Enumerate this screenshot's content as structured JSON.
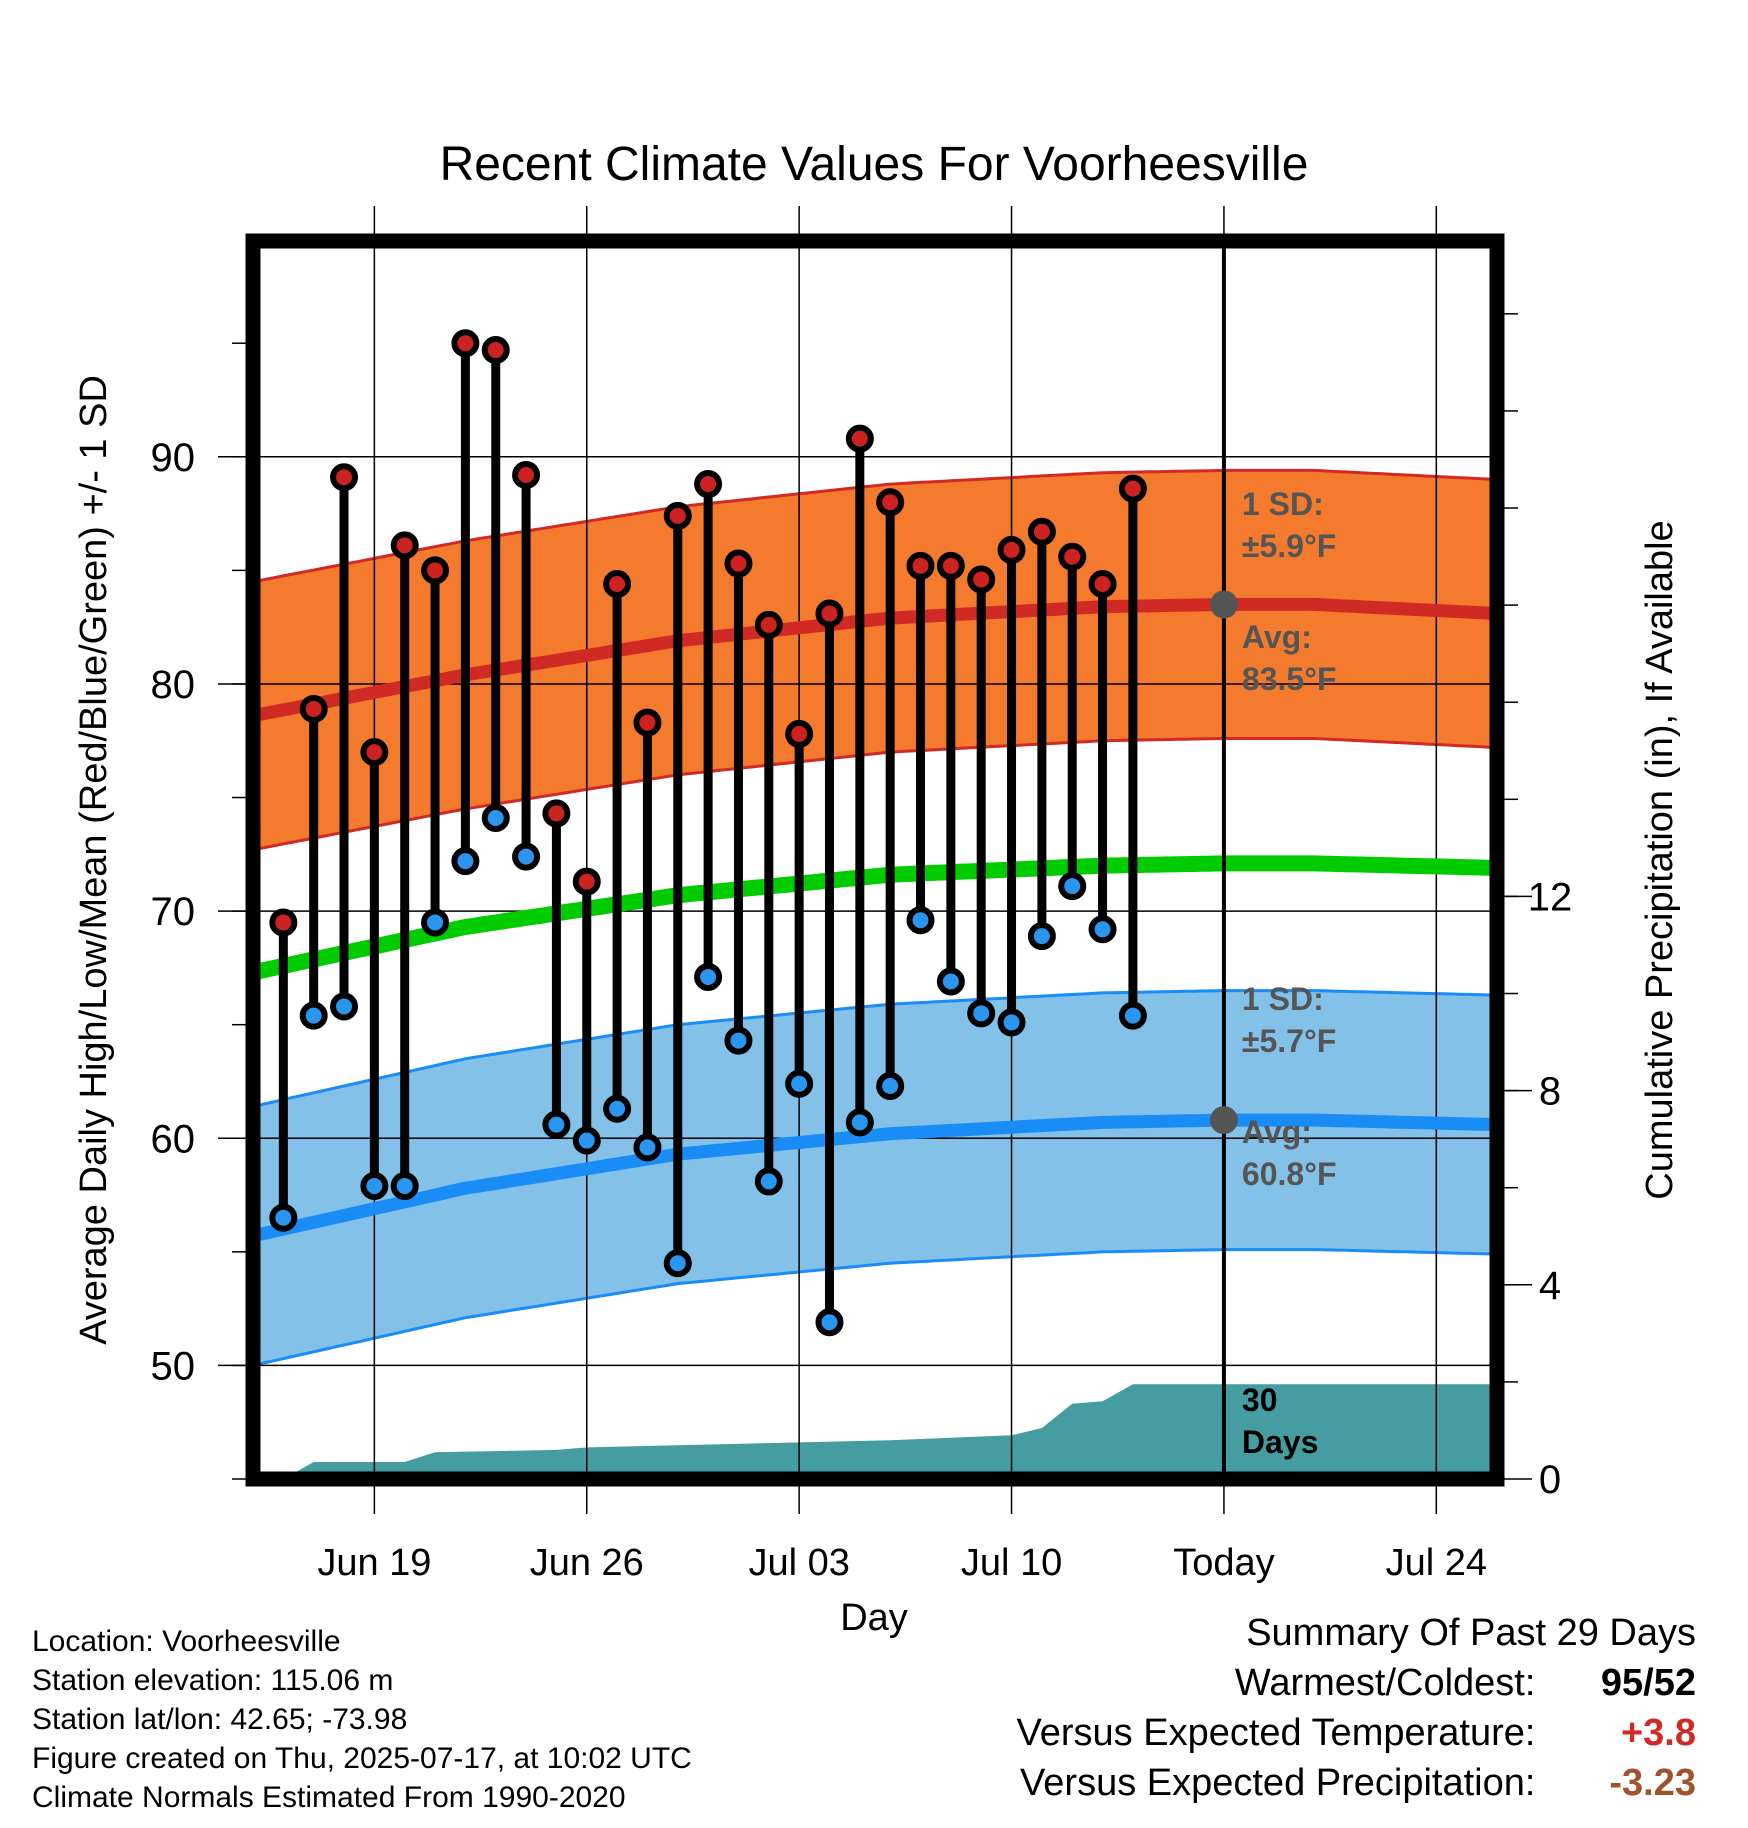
{
  "chart_data": {
    "type": "line",
    "title": "Recent Climate Values For Voorheesville",
    "xlabel": "Day",
    "ylabel_left": "Average Daily High/Low/Mean (Red/Blue/Green) +/- 1 SD",
    "ylabel_right": "Cumulative Precipitation (in), If Available",
    "x_range": [
      "Jun 15",
      "Jul 26"
    ],
    "ylim_left": [
      45,
      99.5
    ],
    "ylim_right": [
      0,
      25.5
    ],
    "y_ticks_left": [
      50,
      60,
      70,
      80,
      90
    ],
    "y_ticks_right": [
      0,
      4,
      8,
      12
    ],
    "x_ticks": [
      {
        "date": "Jun 19",
        "label": "Jun 19"
      },
      {
        "date": "Jun 26",
        "label": "Jun 26"
      },
      {
        "date": "Jul 03",
        "label": "Jul 03"
      },
      {
        "date": "Jul 10",
        "label": "Jul 10"
      },
      {
        "date": "Jul 17",
        "label": "Today"
      },
      {
        "date": "Jul 24",
        "label": "Jul 24"
      }
    ],
    "grid": true,
    "today": "Jul 17",
    "today_label_1": "30",
    "today_label_2": "Days",
    "daily_highs": [
      {
        "date": "Jun 16",
        "value": 69.5
      },
      {
        "date": "Jun 17",
        "value": 78.9
      },
      {
        "date": "Jun 18",
        "value": 89.1
      },
      {
        "date": "Jun 19",
        "value": 77.0
      },
      {
        "date": "Jun 20",
        "value": 86.1
      },
      {
        "date": "Jun 21",
        "value": 85.0
      },
      {
        "date": "Jun 22",
        "value": 95.0
      },
      {
        "date": "Jun 23",
        "value": 94.7
      },
      {
        "date": "Jun 24",
        "value": 89.2
      },
      {
        "date": "Jun 25",
        "value": 74.3
      },
      {
        "date": "Jun 26",
        "value": 71.3
      },
      {
        "date": "Jun 27",
        "value": 84.4
      },
      {
        "date": "Jun 28",
        "value": 78.3
      },
      {
        "date": "Jun 29",
        "value": 87.4
      },
      {
        "date": "Jun 30",
        "value": 88.8
      },
      {
        "date": "Jul 01",
        "value": 85.3
      },
      {
        "date": "Jul 02",
        "value": 82.6
      },
      {
        "date": "Jul 03",
        "value": 77.8
      },
      {
        "date": "Jul 04",
        "value": 83.1
      },
      {
        "date": "Jul 05",
        "value": 90.8
      },
      {
        "date": "Jul 06",
        "value": 88.0
      },
      {
        "date": "Jul 07",
        "value": 85.2
      },
      {
        "date": "Jul 08",
        "value": 85.2
      },
      {
        "date": "Jul 09",
        "value": 84.6
      },
      {
        "date": "Jul 10",
        "value": 85.9
      },
      {
        "date": "Jul 11",
        "value": 86.7
      },
      {
        "date": "Jul 12",
        "value": 85.6
      },
      {
        "date": "Jul 13",
        "value": 84.4
      },
      {
        "date": "Jul 14",
        "value": 88.6
      }
    ],
    "daily_lows": [
      {
        "date": "Jun 16",
        "value": 56.5
      },
      {
        "date": "Jun 17",
        "value": 65.4
      },
      {
        "date": "Jun 18",
        "value": 65.8
      },
      {
        "date": "Jun 19",
        "value": 57.9
      },
      {
        "date": "Jun 20",
        "value": 57.9
      },
      {
        "date": "Jun 21",
        "value": 69.5
      },
      {
        "date": "Jun 22",
        "value": 72.2
      },
      {
        "date": "Jun 23",
        "value": 74.1
      },
      {
        "date": "Jun 24",
        "value": 72.4
      },
      {
        "date": "Jun 25",
        "value": 60.6
      },
      {
        "date": "Jun 26",
        "value": 59.9
      },
      {
        "date": "Jun 27",
        "value": 61.3
      },
      {
        "date": "Jun 28",
        "value": 59.6
      },
      {
        "date": "Jun 29",
        "value": 54.5
      },
      {
        "date": "Jun 30",
        "value": 67.1
      },
      {
        "date": "Jul 01",
        "value": 64.3
      },
      {
        "date": "Jul 02",
        "value": 58.1
      },
      {
        "date": "Jul 03",
        "value": 62.4
      },
      {
        "date": "Jul 04",
        "value": 51.9
      },
      {
        "date": "Jul 05",
        "value": 60.7
      },
      {
        "date": "Jul 06",
        "value": 62.3
      },
      {
        "date": "Jul 07",
        "value": 69.6
      },
      {
        "date": "Jul 08",
        "value": 66.9
      },
      {
        "date": "Jul 09",
        "value": 65.5
      },
      {
        "date": "Jul 10",
        "value": 65.1
      },
      {
        "date": "Jul 11",
        "value": 68.9
      },
      {
        "date": "Jul 12",
        "value": 71.1
      },
      {
        "date": "Jul 13",
        "value": 69.2
      },
      {
        "date": "Jul 14",
        "value": 65.4
      }
    ],
    "normal_high": [
      {
        "date": "Jun 15",
        "value": 78.6
      },
      {
        "date": "Jun 22",
        "value": 80.4
      },
      {
        "date": "Jun 29",
        "value": 81.9
      },
      {
        "date": "Jul 06",
        "value": 82.9
      },
      {
        "date": "Jul 13",
        "value": 83.4
      },
      {
        "date": "Jul 17",
        "value": 83.5
      },
      {
        "date": "Jul 20",
        "value": 83.5
      },
      {
        "date": "Jul 26",
        "value": 83.1
      }
    ],
    "normal_high_sd": 5.9,
    "normal_low": [
      {
        "date": "Jun 15",
        "value": 55.7
      },
      {
        "date": "Jun 22",
        "value": 57.8
      },
      {
        "date": "Jun 29",
        "value": 59.3
      },
      {
        "date": "Jul 06",
        "value": 60.2
      },
      {
        "date": "Jul 13",
        "value": 60.7
      },
      {
        "date": "Jul 17",
        "value": 60.8
      },
      {
        "date": "Jul 20",
        "value": 60.8
      },
      {
        "date": "Jul 26",
        "value": 60.6
      }
    ],
    "normal_low_sd": 5.7,
    "normal_mean": [
      {
        "date": "Jun 15",
        "value": 67.3
      },
      {
        "date": "Jun 22",
        "value": 69.3
      },
      {
        "date": "Jun 29",
        "value": 70.7
      },
      {
        "date": "Jul 06",
        "value": 71.6
      },
      {
        "date": "Jul 13",
        "value": 72.0
      },
      {
        "date": "Jul 17",
        "value": 72.1
      },
      {
        "date": "Jul 20",
        "value": 72.1
      },
      {
        "date": "Jul 26",
        "value": 71.9
      }
    ],
    "cumulative_precip": [
      {
        "date": "Jun 16",
        "value": 0.0
      },
      {
        "date": "Jun 17",
        "value": 0.35
      },
      {
        "date": "Jun 19",
        "value": 0.35
      },
      {
        "date": "Jun 20",
        "value": 0.35
      },
      {
        "date": "Jun 21",
        "value": 0.55
      },
      {
        "date": "Jun 25",
        "value": 0.6
      },
      {
        "date": "Jun 26",
        "value": 0.65
      },
      {
        "date": "Jul 06",
        "value": 0.8
      },
      {
        "date": "Jul 10",
        "value": 0.9
      },
      {
        "date": "Jul 11",
        "value": 1.05
      },
      {
        "date": "Jul 12",
        "value": 1.55
      },
      {
        "date": "Jul 13",
        "value": 1.6
      },
      {
        "date": "Jul 14",
        "value": 1.95
      },
      {
        "date": "Jul 26",
        "value": 1.95
      }
    ],
    "annotations": {
      "high_sd_line1": "1 SD:",
      "high_sd_line2": "±5.9°F",
      "high_avg_line1": "Avg:",
      "high_avg_line2": "83.5°F",
      "low_sd_line1": "1 SD:",
      "low_sd_line2": "±5.7°F",
      "low_avg_line1": "Avg:",
      "low_avg_line2": "60.8°F"
    },
    "colors": {
      "high_band": "#f47a2d",
      "high_line": "#d12a25",
      "low_band": "#84c1e8",
      "low_line": "#1a8cf5",
      "mean_line": "#00cc00",
      "precip": "#459ca1",
      "high_dot": "#cc2222",
      "low_dot": "#2a96f0",
      "annotation": "#555555"
    }
  },
  "footer": {
    "location": "Location: Voorheesville",
    "elevation": "Station elevation: 115.06 m",
    "latlon": "Station lat/lon: 42.65; -73.98",
    "created": "Figure created on Thu, 2025-07-17, at 10:02 UTC",
    "normals": "Climate Normals Estimated From 1990-2020"
  },
  "summary": {
    "title": "Summary Of Past 29 Days",
    "warmest_coldest_label": "Warmest/Coldest:",
    "warmest_coldest_value": "95/52",
    "temp_label": "Versus Expected Temperature:",
    "temp_value": "+3.8",
    "temp_color": "#d12a25",
    "precip_label": "Versus Expected Precipitation:",
    "precip_value": "-3.23",
    "precip_color": "#a0522d"
  }
}
